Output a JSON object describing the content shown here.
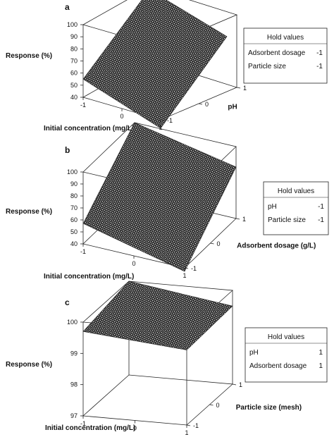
{
  "chart_data": [
    {
      "type": "surface",
      "panel": "a",
      "zlabel": "Response (%)",
      "xlabel": "Initial concentration (mg/L)",
      "ylabel": "pH",
      "x_ticks": [
        "-1",
        "0",
        "1"
      ],
      "y_ticks": [
        "-1",
        "0",
        "1"
      ],
      "z_ticks": [
        "40",
        "50",
        "60",
        "70",
        "80",
        "90",
        "100"
      ],
      "zlim": [
        40,
        100
      ],
      "surface": {
        "z_at_x_neg1_y_neg1": 55,
        "z_at_x_pos1_y_neg1": 33,
        "z_at_x_neg1_y_pos1": 98,
        "z_at_x_pos1_y_pos1": 78
      },
      "legend": {
        "title": "Hold values",
        "rows": [
          {
            "name": "Adsorbent dosage",
            "value": "-1"
          },
          {
            "name": "Particle size",
            "value": "-1"
          }
        ]
      }
    },
    {
      "type": "surface",
      "panel": "b",
      "zlabel": "Response (%)",
      "xlabel": "Initial concentration (mg/L)",
      "ylabel": "Adsorbent dosage (g/L)",
      "x_ticks": [
        "-1",
        "0",
        "1"
      ],
      "y_ticks": [
        "-1",
        "0",
        "1"
      ],
      "z_ticks": [
        "40",
        "50",
        "60",
        "70",
        "80",
        "90",
        "100"
      ],
      "zlim": [
        40,
        100
      ],
      "surface": {
        "z_at_x_neg1_y_neg1": 57,
        "z_at_x_pos1_y_neg1": 37,
        "z_at_x_neg1_y_pos1": 100,
        "z_at_x_pos1_y_pos1": 83
      },
      "legend": {
        "title": "Hold values",
        "rows": [
          {
            "name": "pH",
            "value": "-1"
          },
          {
            "name": "Particle size",
            "value": "-1"
          }
        ]
      }
    },
    {
      "type": "surface",
      "panel": "c",
      "zlabel": "Response (%)",
      "xlabel": "Initial concentration (mg/L)",
      "ylabel": "Particle size (mesh)",
      "x_ticks": [
        "-1",
        "0",
        "1"
      ],
      "y_ticks": [
        "-1",
        "0",
        "1"
      ],
      "z_ticks": [
        "97",
        "98",
        "99",
        "100"
      ],
      "zlim": [
        97,
        100
      ],
      "surface": {
        "z_at_x_neg1_y_neg1": 99.7,
        "z_at_x_pos1_y_neg1": 99.4,
        "z_at_x_neg1_y_pos1": 100.0,
        "z_at_x_pos1_y_pos1": 99.5
      },
      "legend": {
        "title": "Hold values",
        "rows": [
          {
            "name": "pH",
            "value": "1"
          },
          {
            "name": "Adsorbent dosage",
            "value": "1"
          }
        ]
      }
    }
  ]
}
